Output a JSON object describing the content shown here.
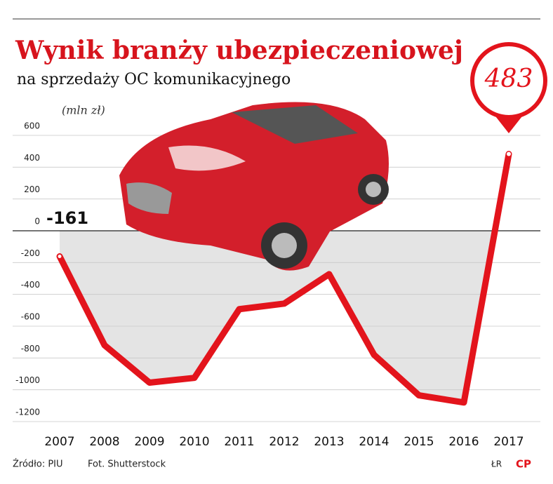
{
  "chart_data": {
    "type": "line",
    "title": "Wynik branży ubezpieczeniowej",
    "subtitle": "na sprzedaży OC komunikacyjnego",
    "y_label": "(mln zł)",
    "categories": [
      "2007",
      "2008",
      "2009",
      "2010",
      "2011",
      "2012",
      "2013",
      "2014",
      "2015",
      "2016",
      "2017"
    ],
    "values": [
      -161,
      -720,
      -955,
      -925,
      -493,
      -458,
      -273,
      -780,
      -1035,
      -1080,
      483
    ],
    "color": "#e3141c",
    "ylim": [
      -1200,
      600
    ],
    "yticks": [
      -1200,
      -1000,
      -800,
      -600,
      -400,
      -200,
      0,
      200,
      400,
      600
    ],
    "grid": true,
    "source": "Źródło: PIU",
    "photo": "Fot. Shutterstock",
    "author": "ŁR",
    "logo": "CP"
  }
}
